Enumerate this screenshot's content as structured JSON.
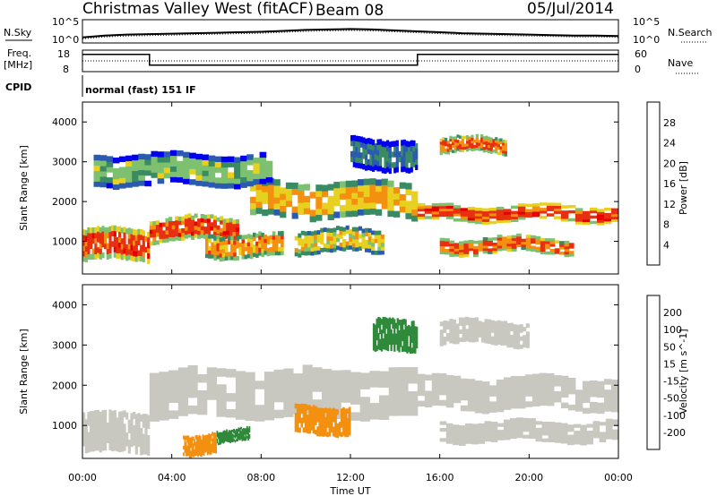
{
  "header": {
    "station": "Christmas Valley West (fitACF)",
    "beam": "Beam 08",
    "date": "05/Jul/2014"
  },
  "sky_panel": {
    "left_label": "N.Sky",
    "left_ticks": [
      "10^5",
      "10^0"
    ],
    "right_label": "N.Search",
    "right_ticks": [
      "10^5",
      "10^0"
    ]
  },
  "freq_panel": {
    "left_label_line1": "Freq.",
    "left_label_line2": "[MHz]",
    "left_ticks": [
      "18",
      "8"
    ],
    "right_label": "Nave",
    "right_ticks": [
      "60",
      "0"
    ]
  },
  "cpid": {
    "label": "CPID",
    "value": "normal (fast) 151 IF"
  },
  "axes": {
    "ylabel": "Slant Range [km]",
    "xlabel": "Time UT",
    "yticks": [
      "1000",
      "2000",
      "3000",
      "4000"
    ],
    "xticks": [
      "00:00",
      "04:00",
      "08:00",
      "12:00",
      "16:00",
      "20:00",
      "00:00"
    ]
  },
  "colors": {
    "power_scale": [
      "#0000ee",
      "#2a5bb0",
      "#3a8a64",
      "#7cc070",
      "#e8d020",
      "#f39010",
      "#e83010",
      "#e80000"
    ],
    "velocity_scale": [
      "#ee0000",
      "#ef6000",
      "#f39010",
      "#f6c050",
      "#c8c8c0",
      "#88d060",
      "#2f8a3a",
      "#4060c0",
      "#2020a8"
    ]
  },
  "chart_data": [
    {
      "type": "line",
      "title": "",
      "series": [
        {
          "name": "N.Sky",
          "x_hours": [
            0,
            1,
            2,
            3,
            4,
            5,
            6,
            7,
            8,
            9,
            10,
            11,
            12,
            13,
            14,
            15,
            16,
            17,
            18,
            19,
            20,
            21,
            22,
            23,
            24
          ],
          "values_log10": [
            1.2,
            1.6,
            1.8,
            1.9,
            2.0,
            2.1,
            2.2,
            2.3,
            2.4,
            2.6,
            2.8,
            2.9,
            3.0,
            2.9,
            2.7,
            2.5,
            2.3,
            2.1,
            2.0,
            1.9,
            1.8,
            1.7,
            1.6,
            1.6,
            1.5
          ]
        },
        {
          "name": "N.Search",
          "x_hours": [
            0,
            1,
            2,
            3,
            4,
            5,
            6,
            7,
            8,
            9,
            10,
            11,
            12,
            13,
            14,
            15,
            16,
            17,
            18,
            19,
            20,
            21,
            22,
            23,
            24
          ],
          "values_log10": [
            0.9,
            1.3,
            1.5,
            1.6,
            1.7,
            1.8,
            1.9,
            2.0,
            2.1,
            2.3,
            2.5,
            2.6,
            2.7,
            2.6,
            2.4,
            2.2,
            2.0,
            1.8,
            1.7,
            1.6,
            1.5,
            1.4,
            1.3,
            1.3,
            1.2
          ]
        }
      ],
      "ylim_log10": [
        0,
        5
      ]
    },
    {
      "type": "line",
      "title": "",
      "series": [
        {
          "name": "Freq.",
          "x_hours": [
            0,
            3,
            3,
            15,
            15,
            24
          ],
          "values": [
            16,
            16,
            11,
            11,
            16,
            16
          ]
        },
        {
          "name": "Nave",
          "x_hours": [
            0,
            24
          ],
          "values": [
            30,
            30
          ]
        }
      ],
      "ylim": [
        8,
        18
      ],
      "ylim_right": [
        0,
        60
      ]
    },
    {
      "type": "heatmap",
      "name": "Power",
      "colorbar_label": "Power [dB]",
      "colorbar_ticks": [
        "28",
        "24",
        "20",
        "16",
        "12",
        "8",
        "4"
      ],
      "xlim_hours": [
        0,
        24
      ],
      "ylim_km": [
        180,
        4500
      ],
      "bands": [
        {
          "t": [
            0.0,
            3.0
          ],
          "r": [
            500,
            1300
          ],
          "level": 26
        },
        {
          "t": [
            3.0,
            7.0
          ],
          "r": [
            1000,
            1600
          ],
          "level": 26
        },
        {
          "t": [
            5.5,
            9.0
          ],
          "r": [
            600,
            1200
          ],
          "level": 22
        },
        {
          "t": [
            7.5,
            15.0
          ],
          "r": [
            1600,
            2500
          ],
          "level": 20
        },
        {
          "t": [
            9.5,
            13.5
          ],
          "r": [
            700,
            1300
          ],
          "level": 18
        },
        {
          "t": [
            15.0,
            24.0
          ],
          "r": [
            1500,
            1900
          ],
          "level": 26
        },
        {
          "t": [
            16.0,
            22.0
          ],
          "r": [
            700,
            1100
          ],
          "level": 24
        },
        {
          "t": [
            0.5,
            8.5
          ],
          "r": [
            2400,
            3200
          ],
          "level": 14
        },
        {
          "t": [
            16.0,
            19.0
          ],
          "r": [
            3200,
            3600
          ],
          "level": 24
        },
        {
          "t": [
            12.0,
            15.0
          ],
          "r": [
            2800,
            3600
          ],
          "level": 8
        }
      ]
    },
    {
      "type": "heatmap",
      "name": "Velocity",
      "colorbar_label": "Velocity [m s^-1]",
      "colorbar_ticks": [
        "200",
        "100",
        "50",
        "15",
        "-15",
        "-50",
        "-100",
        "-200"
      ],
      "xlim_hours": [
        0,
        24
      ],
      "ylim_km": [
        180,
        4500
      ],
      "bands": [
        {
          "t": [
            0.0,
            3.0
          ],
          "r": [
            300,
            1300
          ],
          "velocity": 0
        },
        {
          "t": [
            3.0,
            15.0
          ],
          "r": [
            1200,
            2400
          ],
          "velocity": 0
        },
        {
          "t": [
            9.5,
            12.0
          ],
          "r": [
            800,
            1500
          ],
          "velocity": -80
        },
        {
          "t": [
            6.0,
            7.5
          ],
          "r": [
            600,
            900
          ],
          "velocity": 60
        },
        {
          "t": [
            4.5,
            6.0
          ],
          "r": [
            300,
            800
          ],
          "velocity": -60
        },
        {
          "t": [
            15.0,
            24.0
          ],
          "r": [
            1400,
            2200
          ],
          "velocity": 0
        },
        {
          "t": [
            16.0,
            24.0
          ],
          "r": [
            600,
            1100
          ],
          "velocity": 0
        },
        {
          "t": [
            13.0,
            15.0
          ],
          "r": [
            2800,
            3600
          ],
          "velocity": 60
        },
        {
          "t": [
            16.0,
            20.0
          ],
          "r": [
            3000,
            3600
          ],
          "velocity": 0
        }
      ]
    }
  ]
}
